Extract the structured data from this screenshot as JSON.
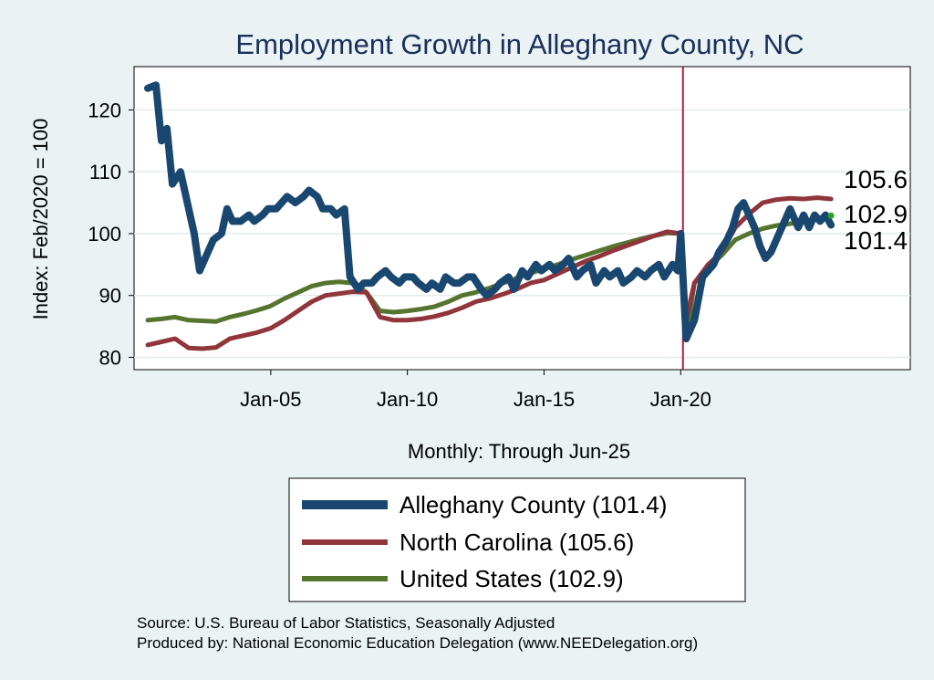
{
  "chart_data": {
    "type": "line",
    "title": "Employment Growth in Alleghany  County, NC",
    "ylabel": "Index: Feb/2020 = 100",
    "xlabel": "Monthly: Through Jun-25",
    "ylim": [
      78,
      127
    ],
    "xlim": [
      2000.0,
      2028.4
    ],
    "yticks": [
      80,
      90,
      100,
      110,
      120
    ],
    "xticks": [
      {
        "value": 2005.0,
        "label": "Jan-05"
      },
      {
        "value": 2010.0,
        "label": "Jan-10"
      },
      {
        "value": 2015.0,
        "label": "Jan-15"
      },
      {
        "value": 2020.0,
        "label": "Jan-20"
      }
    ],
    "reference_line": 2020.083,
    "series": [
      {
        "name": "Alleghany  County (101.4)",
        "end_label": "101.4",
        "color": "#1a476f",
        "width": 8,
        "x": [
          2000.5,
          2000.8,
          2001.0,
          2001.2,
          2001.4,
          2001.7,
          2001.9,
          2002.2,
          2002.4,
          2002.7,
          2002.9,
          2003.2,
          2003.4,
          2003.6,
          2003.9,
          2004.2,
          2004.4,
          2004.7,
          2004.9,
          2005.2,
          2005.4,
          2005.6,
          2005.9,
          2006.2,
          2006.4,
          2006.7,
          2006.9,
          2007.2,
          2007.4,
          2007.7,
          2007.9,
          2008.2,
          2008.4,
          2008.7,
          2008.9,
          2009.2,
          2009.4,
          2009.7,
          2009.9,
          2010.2,
          2010.4,
          2010.7,
          2010.9,
          2011.2,
          2011.4,
          2011.7,
          2011.9,
          2012.2,
          2012.4,
          2012.7,
          2012.9,
          2013.2,
          2013.4,
          2013.7,
          2013.9,
          2014.2,
          2014.4,
          2014.7,
          2014.9,
          2015.2,
          2015.4,
          2015.7,
          2015.9,
          2016.2,
          2016.4,
          2016.7,
          2016.9,
          2017.2,
          2017.4,
          2017.7,
          2017.9,
          2018.2,
          2018.4,
          2018.7,
          2018.9,
          2019.2,
          2019.4,
          2019.7,
          2019.9,
          2020.0,
          2020.2,
          2020.3,
          2020.5,
          2020.8,
          2021.0,
          2021.2,
          2021.4,
          2021.7,
          2021.9,
          2022.1,
          2022.3,
          2022.5,
          2022.7,
          2022.9,
          2023.1,
          2023.3,
          2023.6,
          2023.8,
          2024.0,
          2024.3,
          2024.5,
          2024.7,
          2024.9,
          2025.1,
          2025.3,
          2025.5
        ],
        "values": [
          123.5,
          124,
          115,
          117,
          108,
          110,
          106,
          100,
          94,
          97,
          99,
          100,
          104,
          102,
          102,
          103,
          102,
          103,
          104,
          104,
          105,
          106,
          105,
          106,
          107,
          106,
          104,
          104,
          103,
          104,
          93,
          91,
          92,
          92,
          93,
          94,
          93,
          92,
          93,
          93,
          92,
          91,
          92,
          91,
          93,
          92,
          92,
          93,
          93,
          91,
          90,
          91,
          92,
          93,
          91,
          94,
          93,
          95,
          94,
          95,
          94,
          95,
          96,
          93,
          94,
          95,
          92,
          94,
          93,
          94,
          92,
          93,
          94,
          93,
          94,
          95,
          93,
          95,
          94,
          100,
          83,
          84,
          86,
          93,
          94,
          95,
          97,
          99,
          101,
          104,
          105,
          103,
          101,
          98,
          96,
          97,
          100,
          102,
          104,
          101,
          103,
          101,
          103,
          102,
          103,
          101.4
        ]
      },
      {
        "name": "North Carolina (105.6)",
        "end_label": "105.6",
        "color": "#90353b",
        "width": 5,
        "x": [
          2000.5,
          2001.0,
          2001.5,
          2002.0,
          2002.5,
          2003.0,
          2003.5,
          2004.0,
          2004.5,
          2005.0,
          2005.5,
          2006.0,
          2006.5,
          2007.0,
          2007.5,
          2008.0,
          2008.5,
          2009.0,
          2009.5,
          2010.0,
          2010.5,
          2011.0,
          2011.5,
          2012.0,
          2012.5,
          2013.0,
          2013.5,
          2014.0,
          2014.5,
          2015.0,
          2015.5,
          2016.0,
          2016.5,
          2017.0,
          2017.5,
          2018.0,
          2018.5,
          2019.0,
          2019.5,
          2020.0,
          2020.2,
          2020.3,
          2020.5,
          2021.0,
          2021.5,
          2022.0,
          2022.5,
          2023.0,
          2023.5,
          2024.0,
          2024.5,
          2025.0,
          2025.5
        ],
        "values": [
          82,
          82.5,
          83,
          81.5,
          81.4,
          81.6,
          83,
          83.5,
          84,
          84.7,
          86,
          87.5,
          89,
          90,
          90.3,
          90.6,
          90.5,
          86.5,
          86,
          86,
          86.2,
          86.6,
          87.2,
          88,
          89,
          89.5,
          90.2,
          91,
          92,
          92.5,
          93.5,
          94.5,
          95.5,
          96.3,
          97.2,
          98,
          98.8,
          99.6,
          100.3,
          100,
          86,
          88,
          92,
          95,
          97,
          101,
          103.2,
          105,
          105.5,
          105.7,
          105.6,
          105.8,
          105.6
        ]
      },
      {
        "name": "United States (102.9)",
        "end_label": "102.9",
        "color": "#55752f",
        "width": 5,
        "x": [
          2000.5,
          2001.0,
          2001.5,
          2002.0,
          2002.5,
          2003.0,
          2003.5,
          2004.0,
          2004.5,
          2005.0,
          2005.5,
          2006.0,
          2006.5,
          2007.0,
          2007.5,
          2008.0,
          2008.5,
          2009.0,
          2009.5,
          2010.0,
          2010.5,
          2011.0,
          2011.5,
          2012.0,
          2012.5,
          2013.0,
          2013.5,
          2014.0,
          2014.5,
          2015.0,
          2015.5,
          2016.0,
          2016.5,
          2017.0,
          2017.5,
          2018.0,
          2018.5,
          2019.0,
          2019.5,
          2020.0,
          2020.2,
          2020.3,
          2020.5,
          2021.0,
          2021.5,
          2022.0,
          2022.5,
          2023.0,
          2023.5,
          2024.0,
          2024.5,
          2025.0,
          2025.5
        ],
        "values": [
          86,
          86.2,
          86.5,
          86,
          85.9,
          85.8,
          86.5,
          87,
          87.6,
          88.3,
          89.5,
          90.5,
          91.5,
          92,
          92.2,
          92,
          90.5,
          87.5,
          87.3,
          87.5,
          87.8,
          88.2,
          89,
          90,
          90.5,
          91.2,
          92,
          92.8,
          93.6,
          94.3,
          95,
          95.8,
          96.5,
          97.2,
          97.9,
          98.5,
          99.1,
          99.6,
          100.1,
          100,
          84,
          86,
          92,
          94.5,
          96.5,
          99,
          100,
          100.8,
          101.3,
          101.6,
          101.9,
          102.5,
          102.9
        ]
      }
    ]
  },
  "source_note": "Source: U.S. Bureau of Labor Statistics, Seasonally Adjusted",
  "producer_note": "Produced by: National Economic Education Delegation (www.NEEDelegation.org)"
}
